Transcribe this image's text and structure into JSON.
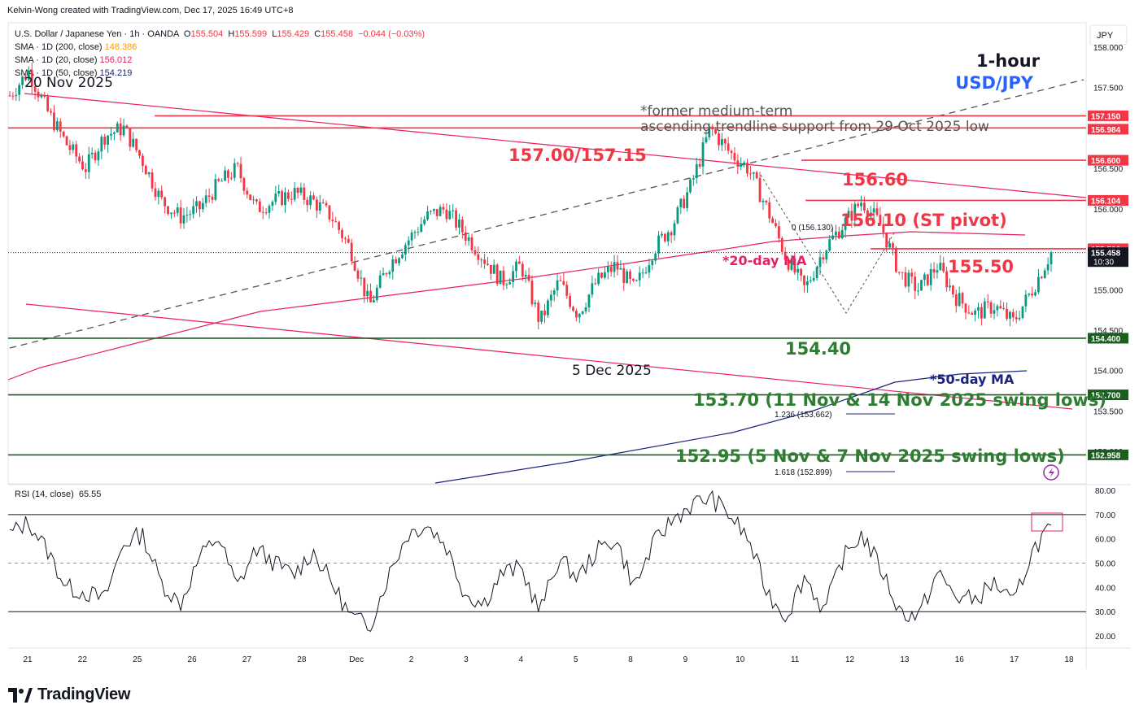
{
  "header": {
    "credit": "Kelvin-Wong created with TradingView.com, Dec 17, 2025 16:49 UTC+8"
  },
  "legend": {
    "symbol": "U.S. Dollar / Japanese Yen · 1h · OANDA",
    "o_label": "O",
    "o": "155.504",
    "h_label": "H",
    "h": "155.599",
    "l_label": "L",
    "l": "155.429",
    "c_label": "C",
    "c": "155.458",
    "change": "−0.044 (−0.03%)",
    "sma200_label": "SMA · 1D (200, close)",
    "sma200": "148.386",
    "sma20_label": "SMA · 1D (20, close)",
    "sma20": "156.012",
    "sma50_label": "SMA · 1D (50, close)",
    "sma50": "154.219"
  },
  "rsi_legend": {
    "label": "RSI (14, close)",
    "value": "65.55"
  },
  "currency_button": "JPY",
  "colors": {
    "up": "#089981",
    "down": "#f23645",
    "pink": "#e91e63",
    "green": "#1b5e20",
    "navy": "#1a237e",
    "blue": "#2962ff",
    "red_ann": "#f23645",
    "ann_green": "#2e7d32"
  },
  "logo": {
    "text": "TradingView"
  },
  "chart_data": {
    "type": "candlestick",
    "instrument": "USD/JPY",
    "timeframe": "1-hour",
    "ylim": [
      152.6,
      158.3
    ],
    "x_ticks": [
      "21",
      "22",
      "25",
      "26",
      "27",
      "28",
      "Dec",
      "2",
      "3",
      "4",
      "5",
      "8",
      "9",
      "10",
      "11",
      "12",
      "13",
      "16",
      "17",
      "18"
    ],
    "y_ticks": [
      "153.000",
      "153.500",
      "154.000",
      "154.500",
      "155.000",
      "155.500",
      "156.000",
      "156.500",
      "157.000",
      "157.500",
      "158.000"
    ],
    "price_tags": [
      {
        "label": "157.150",
        "value": 157.15,
        "color": "#f23645"
      },
      {
        "label": "156.984",
        "value": 156.984,
        "color": "#f23645"
      },
      {
        "label": "156.600",
        "value": 156.6,
        "color": "#f23645"
      },
      {
        "label": "156.104",
        "value": 156.104,
        "color": "#f23645"
      },
      {
        "label": "155.506",
        "value": 155.506,
        "color": "#f23645"
      },
      {
        "label": "155.458",
        "value": 155.458,
        "color": "#131722",
        "sub": "10:30"
      },
      {
        "label": "154.400",
        "value": 154.4,
        "color": "#1b5e20"
      },
      {
        "label": "153.700",
        "value": 153.7,
        "color": "#1b5e20"
      },
      {
        "label": "152.958",
        "value": 152.958,
        "color": "#1b5e20"
      }
    ],
    "close_path": [
      [
        0,
        157.4
      ],
      [
        1,
        157.7
      ],
      [
        2,
        157.2
      ],
      [
        3,
        156.8
      ],
      [
        4,
        156.5
      ],
      [
        5,
        156.9
      ],
      [
        6,
        157.0
      ],
      [
        7,
        156.6
      ],
      [
        8,
        156.1
      ],
      [
        9,
        155.9
      ],
      [
        10,
        156.0
      ],
      [
        11,
        156.3
      ],
      [
        12,
        156.5
      ],
      [
        13,
        156.0
      ],
      [
        14,
        156.1
      ],
      [
        15,
        156.2
      ],
      [
        16,
        156.1
      ],
      [
        17,
        155.9
      ],
      [
        18,
        155.5
      ],
      [
        19,
        154.8
      ],
      [
        20,
        155.3
      ],
      [
        21,
        155.6
      ],
      [
        22,
        155.9
      ],
      [
        23,
        156.0
      ],
      [
        24,
        155.7
      ],
      [
        25,
        155.4
      ],
      [
        26,
        155.1
      ],
      [
        27,
        155.3
      ],
      [
        28,
        154.6
      ],
      [
        29,
        155.1
      ],
      [
        30,
        154.7
      ],
      [
        31,
        155.1
      ],
      [
        32,
        155.3
      ],
      [
        33,
        155.0
      ],
      [
        34,
        155.5
      ],
      [
        35,
        155.8
      ],
      [
        36,
        156.3
      ],
      [
        37,
        157.0
      ],
      [
        38,
        156.7
      ],
      [
        39,
        156.5
      ],
      [
        40,
        156.0
      ],
      [
        41,
        155.4
      ],
      [
        42,
        155.0
      ],
      [
        43,
        155.5
      ],
      [
        44,
        155.8
      ],
      [
        45,
        156.1
      ],
      [
        46,
        155.8
      ],
      [
        47,
        155.2
      ],
      [
        48,
        155.0
      ],
      [
        49,
        155.3
      ],
      [
        50,
        154.9
      ],
      [
        51,
        154.7
      ],
      [
        52,
        154.8
      ],
      [
        53,
        154.6
      ],
      [
        54,
        155.0
      ],
      [
        55,
        155.46
      ]
    ],
    "horizontal_levels": [
      {
        "label": "157.00/157.15",
        "values": [
          157.0,
          157.15
        ],
        "color": "#f23645"
      },
      {
        "label": "156.60",
        "value": 156.6,
        "color": "#f23645"
      },
      {
        "label": "156.10 (ST pivot)",
        "value": 156.104,
        "color": "#f23645"
      },
      {
        "label": "155.50",
        "value": 155.506,
        "color": "#f23645"
      },
      {
        "label": "154.40",
        "value": 154.4,
        "color": "#1b5e20"
      },
      {
        "label": "153.70 (11 Nov & 14 Nov 2025 swing lows)",
        "value": 153.7,
        "color": "#1b5e20"
      },
      {
        "label": "152.95 (5 Nov & 7 Nov 2025 swing lows)",
        "value": 152.958,
        "color": "#1b5e20"
      }
    ],
    "annotations": {
      "title": "1-hour",
      "pair": "USD/JPY",
      "trend_note_1": "*former medium-term",
      "trend_note_2": "ascending trendline support from 29 Oct 2025 low",
      "ma20": "*20-day MA",
      "ma50": "*50-day MA",
      "date_high": "20 Nov 2025",
      "date_low": "5 Dec 2025",
      "fib_0": "0 (156.130)",
      "fib_1236": "1.236 (153.662)",
      "fib_1618": "1.618 (152.899)"
    },
    "rsi": {
      "ylim": [
        15,
        82
      ],
      "y_ticks": [
        "80.00",
        "70.00",
        "60.00",
        "50.00",
        "40.00",
        "30.00",
        "20.00"
      ],
      "levels": [
        70,
        50,
        30
      ],
      "values": [
        [
          0,
          62
        ],
        [
          1,
          67
        ],
        [
          2,
          55
        ],
        [
          3,
          40
        ],
        [
          4,
          38
        ],
        [
          5,
          35
        ],
        [
          6,
          58
        ],
        [
          7,
          62
        ],
        [
          8,
          42
        ],
        [
          9,
          33
        ],
        [
          10,
          52
        ],
        [
          11,
          61
        ],
        [
          12,
          40
        ],
        [
          13,
          56
        ],
        [
          14,
          50
        ],
        [
          15,
          45
        ],
        [
          16,
          55
        ],
        [
          17,
          42
        ],
        [
          18,
          28
        ],
        [
          19,
          24
        ],
        [
          20,
          45
        ],
        [
          21,
          62
        ],
        [
          22,
          66
        ],
        [
          23,
          58
        ],
        [
          24,
          38
        ],
        [
          25,
          33
        ],
        [
          26,
          46
        ],
        [
          27,
          48
        ],
        [
          28,
          30
        ],
        [
          29,
          52
        ],
        [
          30,
          44
        ],
        [
          31,
          55
        ],
        [
          32,
          60
        ],
        [
          33,
          40
        ],
        [
          34,
          58
        ],
        [
          35,
          68
        ],
        [
          36,
          74
        ],
        [
          37,
          77
        ],
        [
          38,
          70
        ],
        [
          39,
          60
        ],
        [
          40,
          38
        ],
        [
          41,
          28
        ],
        [
          42,
          45
        ],
        [
          43,
          30
        ],
        [
          44,
          52
        ],
        [
          45,
          62
        ],
        [
          46,
          48
        ],
        [
          47,
          30
        ],
        [
          48,
          28
        ],
        [
          49,
          46
        ],
        [
          50,
          36
        ],
        [
          51,
          35
        ],
        [
          52,
          42
        ],
        [
          53,
          33
        ],
        [
          54,
          55
        ],
        [
          55,
          65.55
        ]
      ]
    }
  }
}
